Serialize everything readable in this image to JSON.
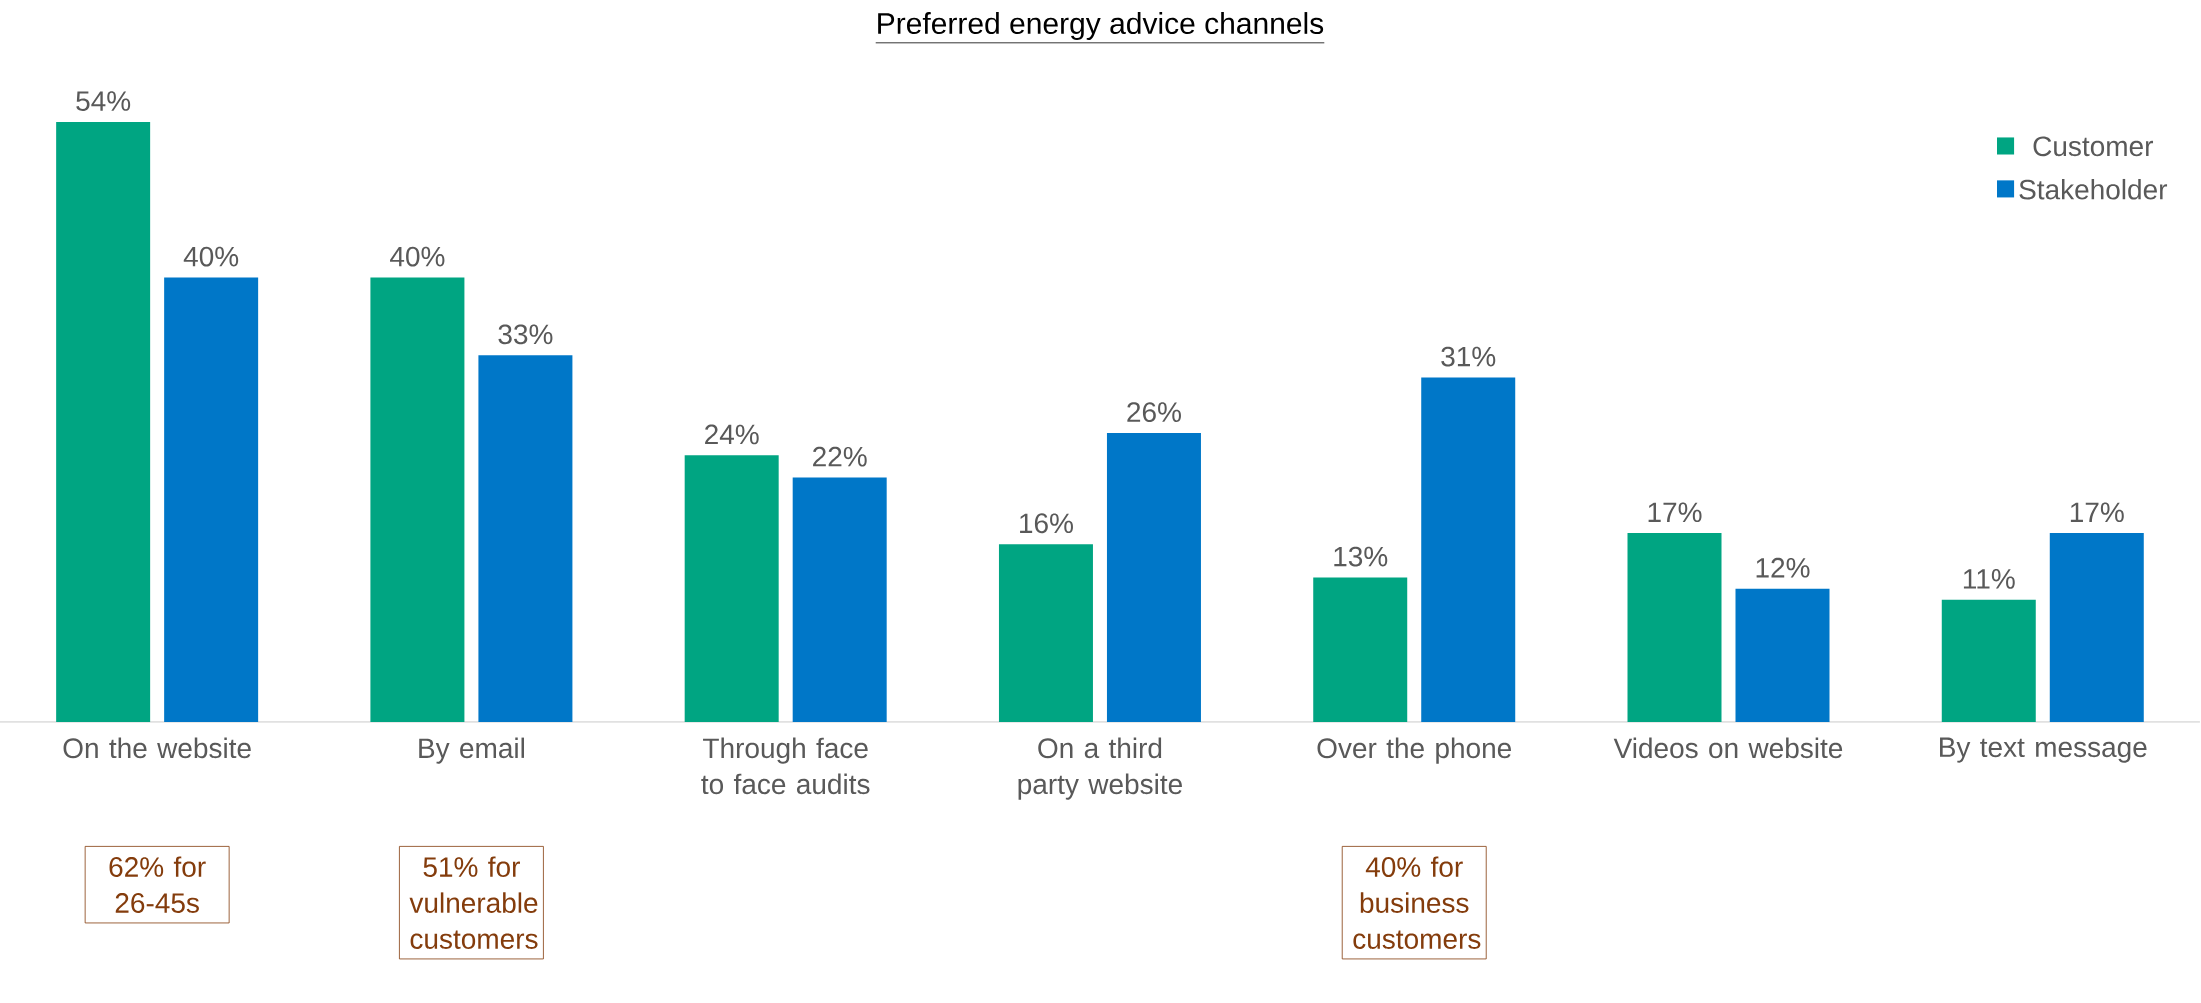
{
  "chart_data": {
    "type": "bar",
    "title": "Preferred energy advice channels",
    "categories": [
      "On the website",
      "By email",
      "Through face to face audits",
      "On a third party website",
      "Over the phone",
      "Videos on website",
      "By text message"
    ],
    "series": [
      {
        "name": "Customer",
        "color": "#00a582",
        "values": [
          54,
          40,
          24,
          16,
          13,
          17,
          11
        ],
        "value_labels": [
          "54%",
          "40%",
          "24%",
          "16%",
          "13%",
          "17%",
          "11%"
        ]
      },
      {
        "name": "Stakeholder",
        "color": "#0077c8",
        "values": [
          40,
          33,
          22,
          26,
          31,
          12,
          17
        ],
        "value_labels": [
          "40%",
          "33%",
          "22%",
          "26%",
          "31%",
          "12%",
          "17%"
        ]
      }
    ],
    "legend": "top right",
    "annotations": [
      "62% for 26-45s",
      "51% for vulnerable customers",
      "40% for business customers"
    ]
  }
}
